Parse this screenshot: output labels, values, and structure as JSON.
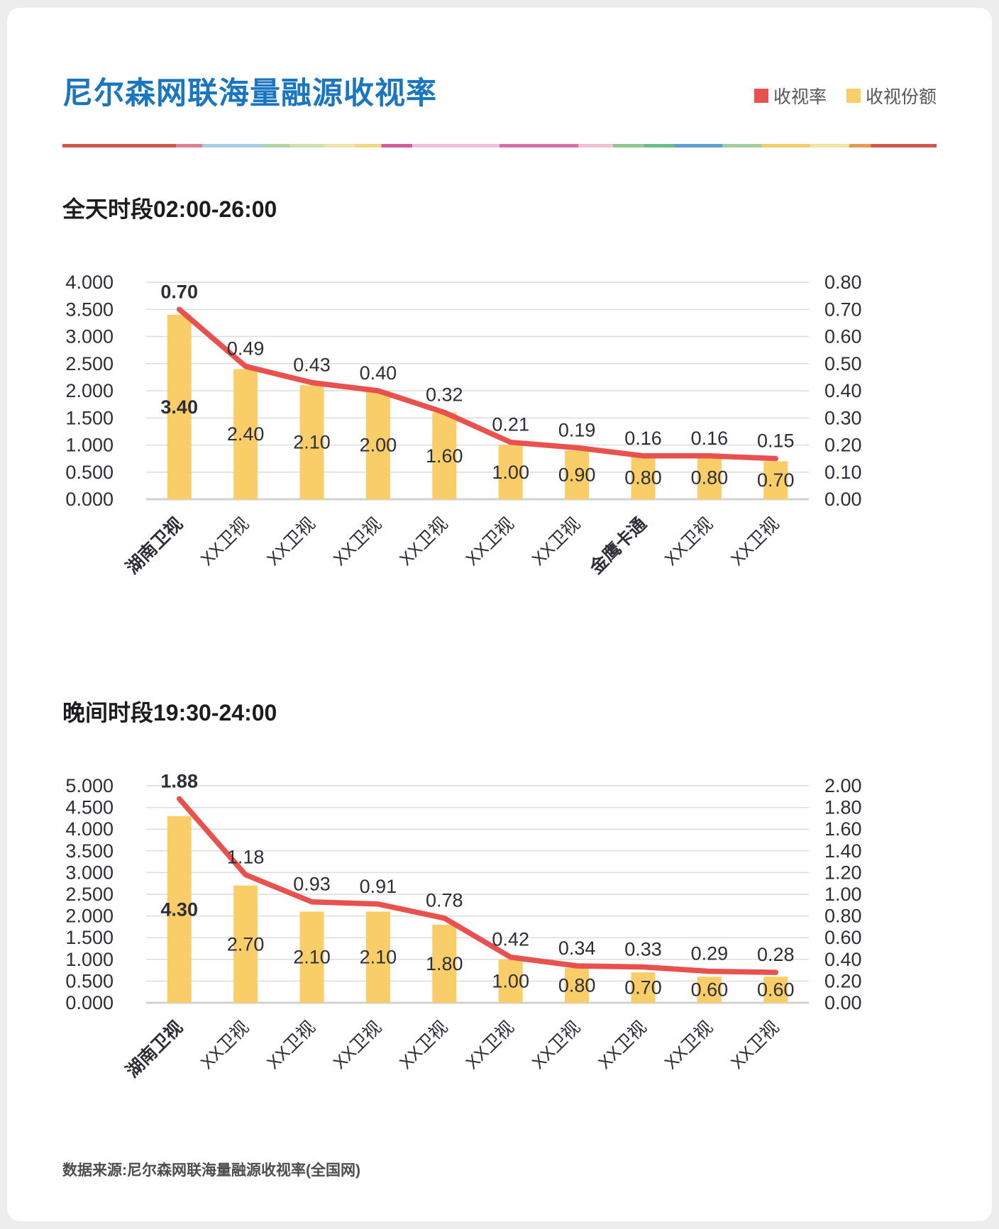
{
  "page": {
    "title": "尼尔森网联海量融源收视率",
    "source": "数据来源:尼尔森网联海量融源收视率(全国网)"
  },
  "legend": {
    "items": [
      {
        "label": "收视率",
        "color": "#E8514D",
        "icon": "red-square-swatch"
      },
      {
        "label": "收视份额",
        "color": "#F9CE68",
        "icon": "yellow-square-swatch"
      }
    ]
  },
  "colors": {
    "title_blue": "#1B76C1",
    "bar_yellow": "#F9CE68",
    "line_red": "#E8514D",
    "grid": "#DCDCDC",
    "baseline": "#D2D2D2",
    "text_dark": "#2E2E38"
  },
  "chart_data": [
    {
      "type": "bar+line",
      "title": "全天时段02:00-26:00",
      "grid": true,
      "categories": [
        "湖南卫视",
        "XX卫视",
        "XX卫视",
        "XX卫视",
        "XX卫视",
        "XX卫视",
        "XX卫视",
        "金鹰卡通",
        "XX卫视",
        "XX卫视"
      ],
      "bold_category_indexes": [
        0,
        7
      ],
      "bold_value_indexes": [
        0
      ],
      "left_axis": {
        "min": 0,
        "max": 4.0,
        "ticks": [
          "4.000",
          "3.500",
          "3.000",
          "2.500",
          "2.000",
          "1.500",
          "1.000",
          "0.500",
          "0.000"
        ]
      },
      "right_axis": {
        "min": 0,
        "max": 0.8,
        "ticks": [
          "0.80",
          "0.70",
          "0.60",
          "0.50",
          "0.40",
          "0.30",
          "0.20",
          "0.10",
          "0.00"
        ]
      },
      "series": [
        {
          "name": "收视份额",
          "type": "bar",
          "axis": "left",
          "values": [
            3.4,
            2.4,
            2.1,
            2.0,
            1.6,
            1.0,
            0.9,
            0.8,
            0.8,
            0.7
          ],
          "labels": [
            "3.40",
            "2.40",
            "2.10",
            "2.00",
            "1.60",
            "1.00",
            "0.90",
            "0.80",
            "0.80",
            "0.70"
          ]
        },
        {
          "name": "收视率",
          "type": "line",
          "axis": "right",
          "values": [
            0.7,
            0.49,
            0.43,
            0.4,
            0.32,
            0.21,
            0.19,
            0.16,
            0.16,
            0.15
          ],
          "labels": [
            "0.70",
            "0.49",
            "0.43",
            "0.40",
            "0.32",
            "0.21",
            "0.19",
            "0.16",
            "0.16",
            "0.15"
          ]
        }
      ]
    },
    {
      "type": "bar+line",
      "title": "晚间时段19:30-24:00",
      "grid": true,
      "categories": [
        "湖南卫视",
        "XX卫视",
        "XX卫视",
        "XX卫视",
        "XX卫视",
        "XX卫视",
        "XX卫视",
        "XX卫视",
        "XX卫视",
        "XX卫视"
      ],
      "bold_category_indexes": [
        0
      ],
      "bold_value_indexes": [
        0
      ],
      "left_axis": {
        "min": 0,
        "max": 5.0,
        "ticks": [
          "5.000",
          "4.500",
          "4.000",
          "3.500",
          "3.000",
          "2.500",
          "2.000",
          "1.500",
          "1.000",
          "0.500",
          "0.000"
        ]
      },
      "right_axis": {
        "min": 0,
        "max": 2.0,
        "ticks": [
          "2.00",
          "1.80",
          "1.60",
          "1.40",
          "1.20",
          "1.00",
          "0.80",
          "0.60",
          "0.40",
          "0.20",
          "0.00"
        ]
      },
      "series": [
        {
          "name": "收视份额",
          "type": "bar",
          "axis": "left",
          "values": [
            4.3,
            2.7,
            2.1,
            2.1,
            1.8,
            1.0,
            0.8,
            0.7,
            0.6,
            0.6
          ],
          "labels": [
            "4.30",
            "2.70",
            "2.10",
            "2.10",
            "1.80",
            "1.00",
            "0.80",
            "0.70",
            "0.60",
            "0.60"
          ]
        },
        {
          "name": "收视率",
          "type": "line",
          "axis": "right",
          "values": [
            1.88,
            1.18,
            0.93,
            0.91,
            0.78,
            0.42,
            0.34,
            0.33,
            0.29,
            0.28
          ],
          "labels": [
            "1.88",
            "1.18",
            "0.93",
            "0.91",
            "0.78",
            "0.42",
            "0.34",
            "0.33",
            "0.29",
            "0.28"
          ]
        }
      ]
    }
  ]
}
